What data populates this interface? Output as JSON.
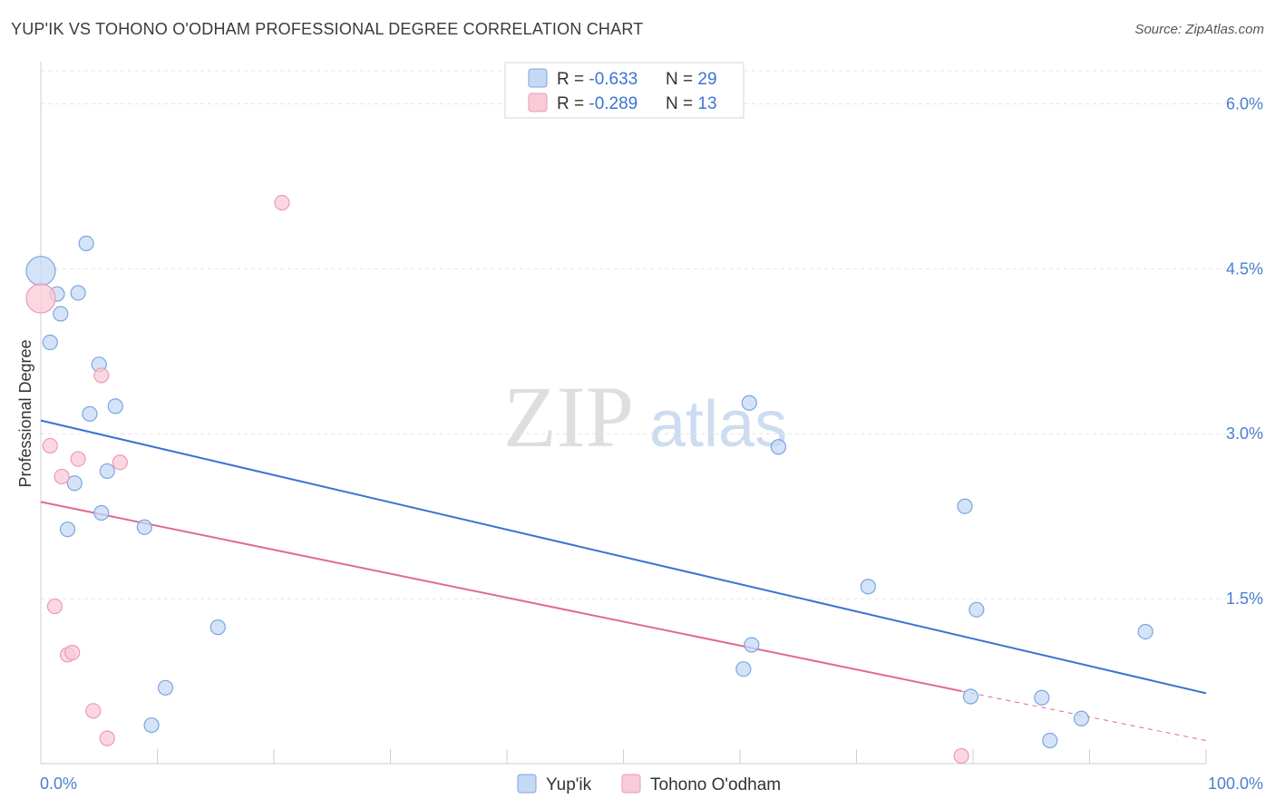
{
  "title": "YUP'IK VS TOHONO O'ODHAM PROFESSIONAL DEGREE CORRELATION CHART",
  "source": "Source: ZipAtlas.com",
  "watermark": {
    "zip": "ZIP",
    "atlas": "atlas"
  },
  "colors": {
    "blue_fill": "#c5d9f5",
    "blue_stroke": "#7aa6e0",
    "blue_line": "#3874d0",
    "pink_fill": "#f9cad8",
    "pink_stroke": "#ee9ab5",
    "pink_line": "#e06a92",
    "grid": "#e3e3e3",
    "tick_text": "#4a7fd0"
  },
  "legend": {
    "rows": [
      {
        "r_label": "R = ",
        "r_value": "-0.633",
        "n_label": "N = ",
        "n_value": "29"
      },
      {
        "r_label": "R = ",
        "r_value": "-0.289",
        "n_label": "N = ",
        "n_value": "13"
      }
    ]
  },
  "chart_data": {
    "type": "scatter",
    "title": "YUP'IK VS TOHONO O'ODHAM PROFESSIONAL DEGREE CORRELATION CHART",
    "xlabel": "",
    "ylabel": "Professional Degree",
    "xlim": [
      0,
      100
    ],
    "ylim": [
      0,
      6.3
    ],
    "x_tick_labels": [
      "0.0%",
      "100.0%"
    ],
    "y_ticks": [
      1.5,
      3.0,
      4.5,
      6.0
    ],
    "y_tick_labels": [
      "1.5%",
      "3.0%",
      "4.5%",
      "6.0%"
    ],
    "legend_position": "top-center",
    "grid": true,
    "series": [
      {
        "name": "Yup'ik",
        "points": [
          [
            0.0,
            4.48
          ],
          [
            1.4,
            4.27
          ],
          [
            1.7,
            4.09
          ],
          [
            0.8,
            3.83
          ],
          [
            3.9,
            4.73
          ],
          [
            3.2,
            4.28
          ],
          [
            5.0,
            3.63
          ],
          [
            4.2,
            3.18
          ],
          [
            6.4,
            3.25
          ],
          [
            2.9,
            2.55
          ],
          [
            5.7,
            2.66
          ],
          [
            5.2,
            2.28
          ],
          [
            2.3,
            2.13
          ],
          [
            8.9,
            2.15
          ],
          [
            15.2,
            1.24
          ],
          [
            10.7,
            0.69
          ],
          [
            9.5,
            0.35
          ],
          [
            60.3,
            0.86
          ],
          [
            61.0,
            1.08
          ],
          [
            60.8,
            3.28
          ],
          [
            63.3,
            2.88
          ],
          [
            71.0,
            1.61
          ],
          [
            80.3,
            1.4
          ],
          [
            79.3,
            2.34
          ],
          [
            79.8,
            0.61
          ],
          [
            85.9,
            0.6
          ],
          [
            86.6,
            0.21
          ],
          [
            89.3,
            0.41
          ],
          [
            94.8,
            1.2
          ]
        ],
        "trend": {
          "x": [
            0,
            100
          ],
          "y": [
            3.12,
            0.64
          ]
        }
      },
      {
        "name": "Tohono O'odham",
        "points": [
          [
            0.0,
            4.23
          ],
          [
            20.7,
            5.1
          ],
          [
            5.2,
            3.53
          ],
          [
            0.8,
            2.89
          ],
          [
            3.2,
            2.77
          ],
          [
            6.8,
            2.74
          ],
          [
            1.8,
            2.61
          ],
          [
            1.2,
            1.43
          ],
          [
            2.3,
            0.99
          ],
          [
            2.7,
            1.01
          ],
          [
            4.5,
            0.48
          ],
          [
            5.7,
            0.23
          ],
          [
            79.0,
            0.07
          ]
        ],
        "trend": {
          "x": [
            0,
            79
          ],
          "y": [
            2.38,
            0.66
          ]
        },
        "trend_extension": {
          "x": [
            79,
            100
          ],
          "y": [
            0.66,
            0.21
          ]
        }
      }
    ]
  },
  "bottom_legend": [
    "Yup'ik",
    "Tohono O'odham"
  ]
}
